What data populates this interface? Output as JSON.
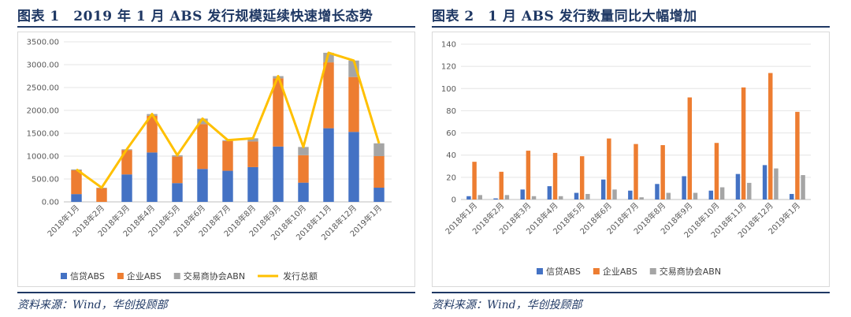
{
  "left": {
    "title": "图表 1　2019 年 1 月 ABS 发行规模延续快速增长态势",
    "source": "资料来源：Wind，华创投顾部"
  },
  "right": {
    "title": "图表 2　1 月 ABS 发行数量同比大幅增加",
    "source": "资料来源：Wind，华创投顾部"
  },
  "colors": {
    "credit": "#4472c4",
    "corp": "#ed7d31",
    "abn": "#a5a5a5",
    "total": "#ffc000"
  },
  "chart_data": [
    {
      "type": "bar",
      "stacked": true,
      "title": "图表 1　2019 年 1 月 ABS 发行规模延续快速增长态势",
      "categories": [
        "2018年1月",
        "2018年2月",
        "2018年3月",
        "2018年4月",
        "2018年5月",
        "2018年6月",
        "2018年7月",
        "2018年8月",
        "2018年9月",
        "2018年10月",
        "2018年11月",
        "2018年12月",
        "2019年1月"
      ],
      "series": [
        {
          "name": "信贷ABS",
          "type": "bar",
          "values": [
            170,
            0,
            600,
            1080,
            410,
            720,
            680,
            760,
            1210,
            420,
            1610,
            1530,
            310
          ]
        },
        {
          "name": "企业ABS",
          "type": "bar",
          "values": [
            520,
            300,
            530,
            800,
            580,
            980,
            650,
            560,
            1490,
            600,
            1440,
            1200,
            690
          ]
        },
        {
          "name": "交易商协会ABN",
          "type": "bar",
          "values": [
            20,
            10,
            20,
            40,
            30,
            120,
            20,
            70,
            50,
            180,
            210,
            360,
            280
          ]
        },
        {
          "name": "发行总额",
          "type": "line",
          "values": [
            710,
            310,
            1150,
            1920,
            1020,
            1820,
            1350,
            1390,
            2750,
            1200,
            3260,
            3090,
            1280
          ]
        }
      ],
      "yticks": [
        "0.00",
        "500.00",
        "1000.00",
        "1500.00",
        "2000.00",
        "2500.00",
        "3000.00",
        "3500.00"
      ],
      "ylim": [
        0,
        3500
      ],
      "grid": true,
      "legend_position": "bottom"
    },
    {
      "type": "bar",
      "stacked": false,
      "title": "图表 2　1 月 ABS 发行数量同比大幅增加",
      "categories": [
        "2018年1月",
        "2018年2月",
        "2018年3月",
        "2018年4月",
        "2018年5月",
        "2018年6月",
        "2018年7月",
        "2018年8月",
        "2018年9月",
        "2018年10月",
        "2018年11月",
        "2018年12月",
        "2019年1月"
      ],
      "series": [
        {
          "name": "信贷ABS",
          "values": [
            3,
            1,
            9,
            12,
            6,
            18,
            8,
            14,
            21,
            8,
            23,
            31,
            5
          ]
        },
        {
          "name": "企业ABS",
          "values": [
            34,
            25,
            44,
            42,
            39,
            55,
            50,
            49,
            92,
            51,
            101,
            114,
            79
          ]
        },
        {
          "name": "交易商协会ABN",
          "values": [
            4,
            4,
            3,
            3,
            5,
            9,
            2,
            6,
            6,
            11,
            15,
            28,
            22
          ]
        }
      ],
      "yticks": [
        "0",
        "20",
        "40",
        "60",
        "80",
        "100",
        "120",
        "140"
      ],
      "ylim": [
        0,
        140
      ],
      "grid": true,
      "legend_position": "bottom"
    }
  ]
}
